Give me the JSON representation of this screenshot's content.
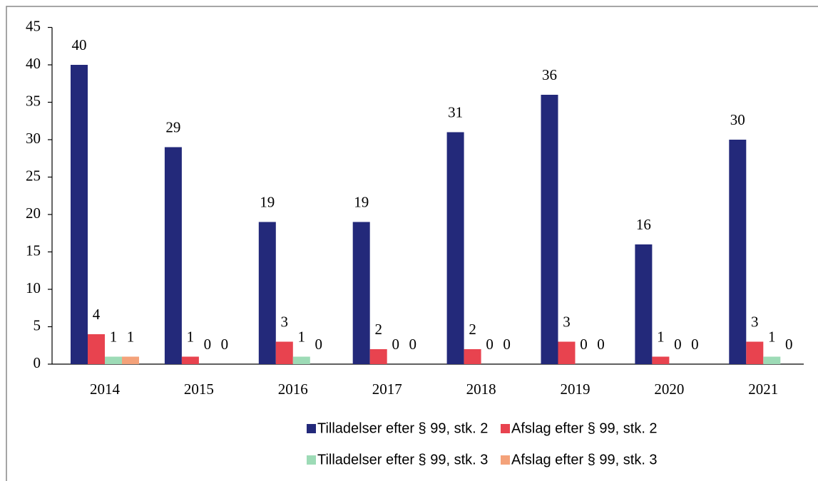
{
  "chart_data": {
    "type": "bar",
    "categories": [
      "2014",
      "2015",
      "2016",
      "2017",
      "2018",
      "2019",
      "2020",
      "2021"
    ],
    "series": [
      {
        "name": "Tilladelser efter § 99, stk. 2",
        "color": "#23297a",
        "values": [
          40,
          29,
          19,
          19,
          31,
          36,
          16,
          30
        ]
      },
      {
        "name": "Afslag efter § 99, stk. 2",
        "color": "#e8434f",
        "values": [
          4,
          1,
          3,
          2,
          2,
          3,
          1,
          3
        ]
      },
      {
        "name": "Tilladelser efter § 99, stk. 3",
        "color": "#9ddbb6",
        "values": [
          1,
          0,
          1,
          0,
          0,
          0,
          0,
          1
        ]
      },
      {
        "name": "Afslag efter § 99, stk. 3",
        "color": "#f4a27a",
        "values": [
          1,
          0,
          0,
          0,
          0,
          0,
          0,
          0
        ]
      }
    ],
    "ylim": [
      0,
      45
    ],
    "yticks": [
      0,
      5,
      10,
      15,
      20,
      25,
      30,
      35,
      40,
      45
    ],
    "legend": "bottom"
  }
}
